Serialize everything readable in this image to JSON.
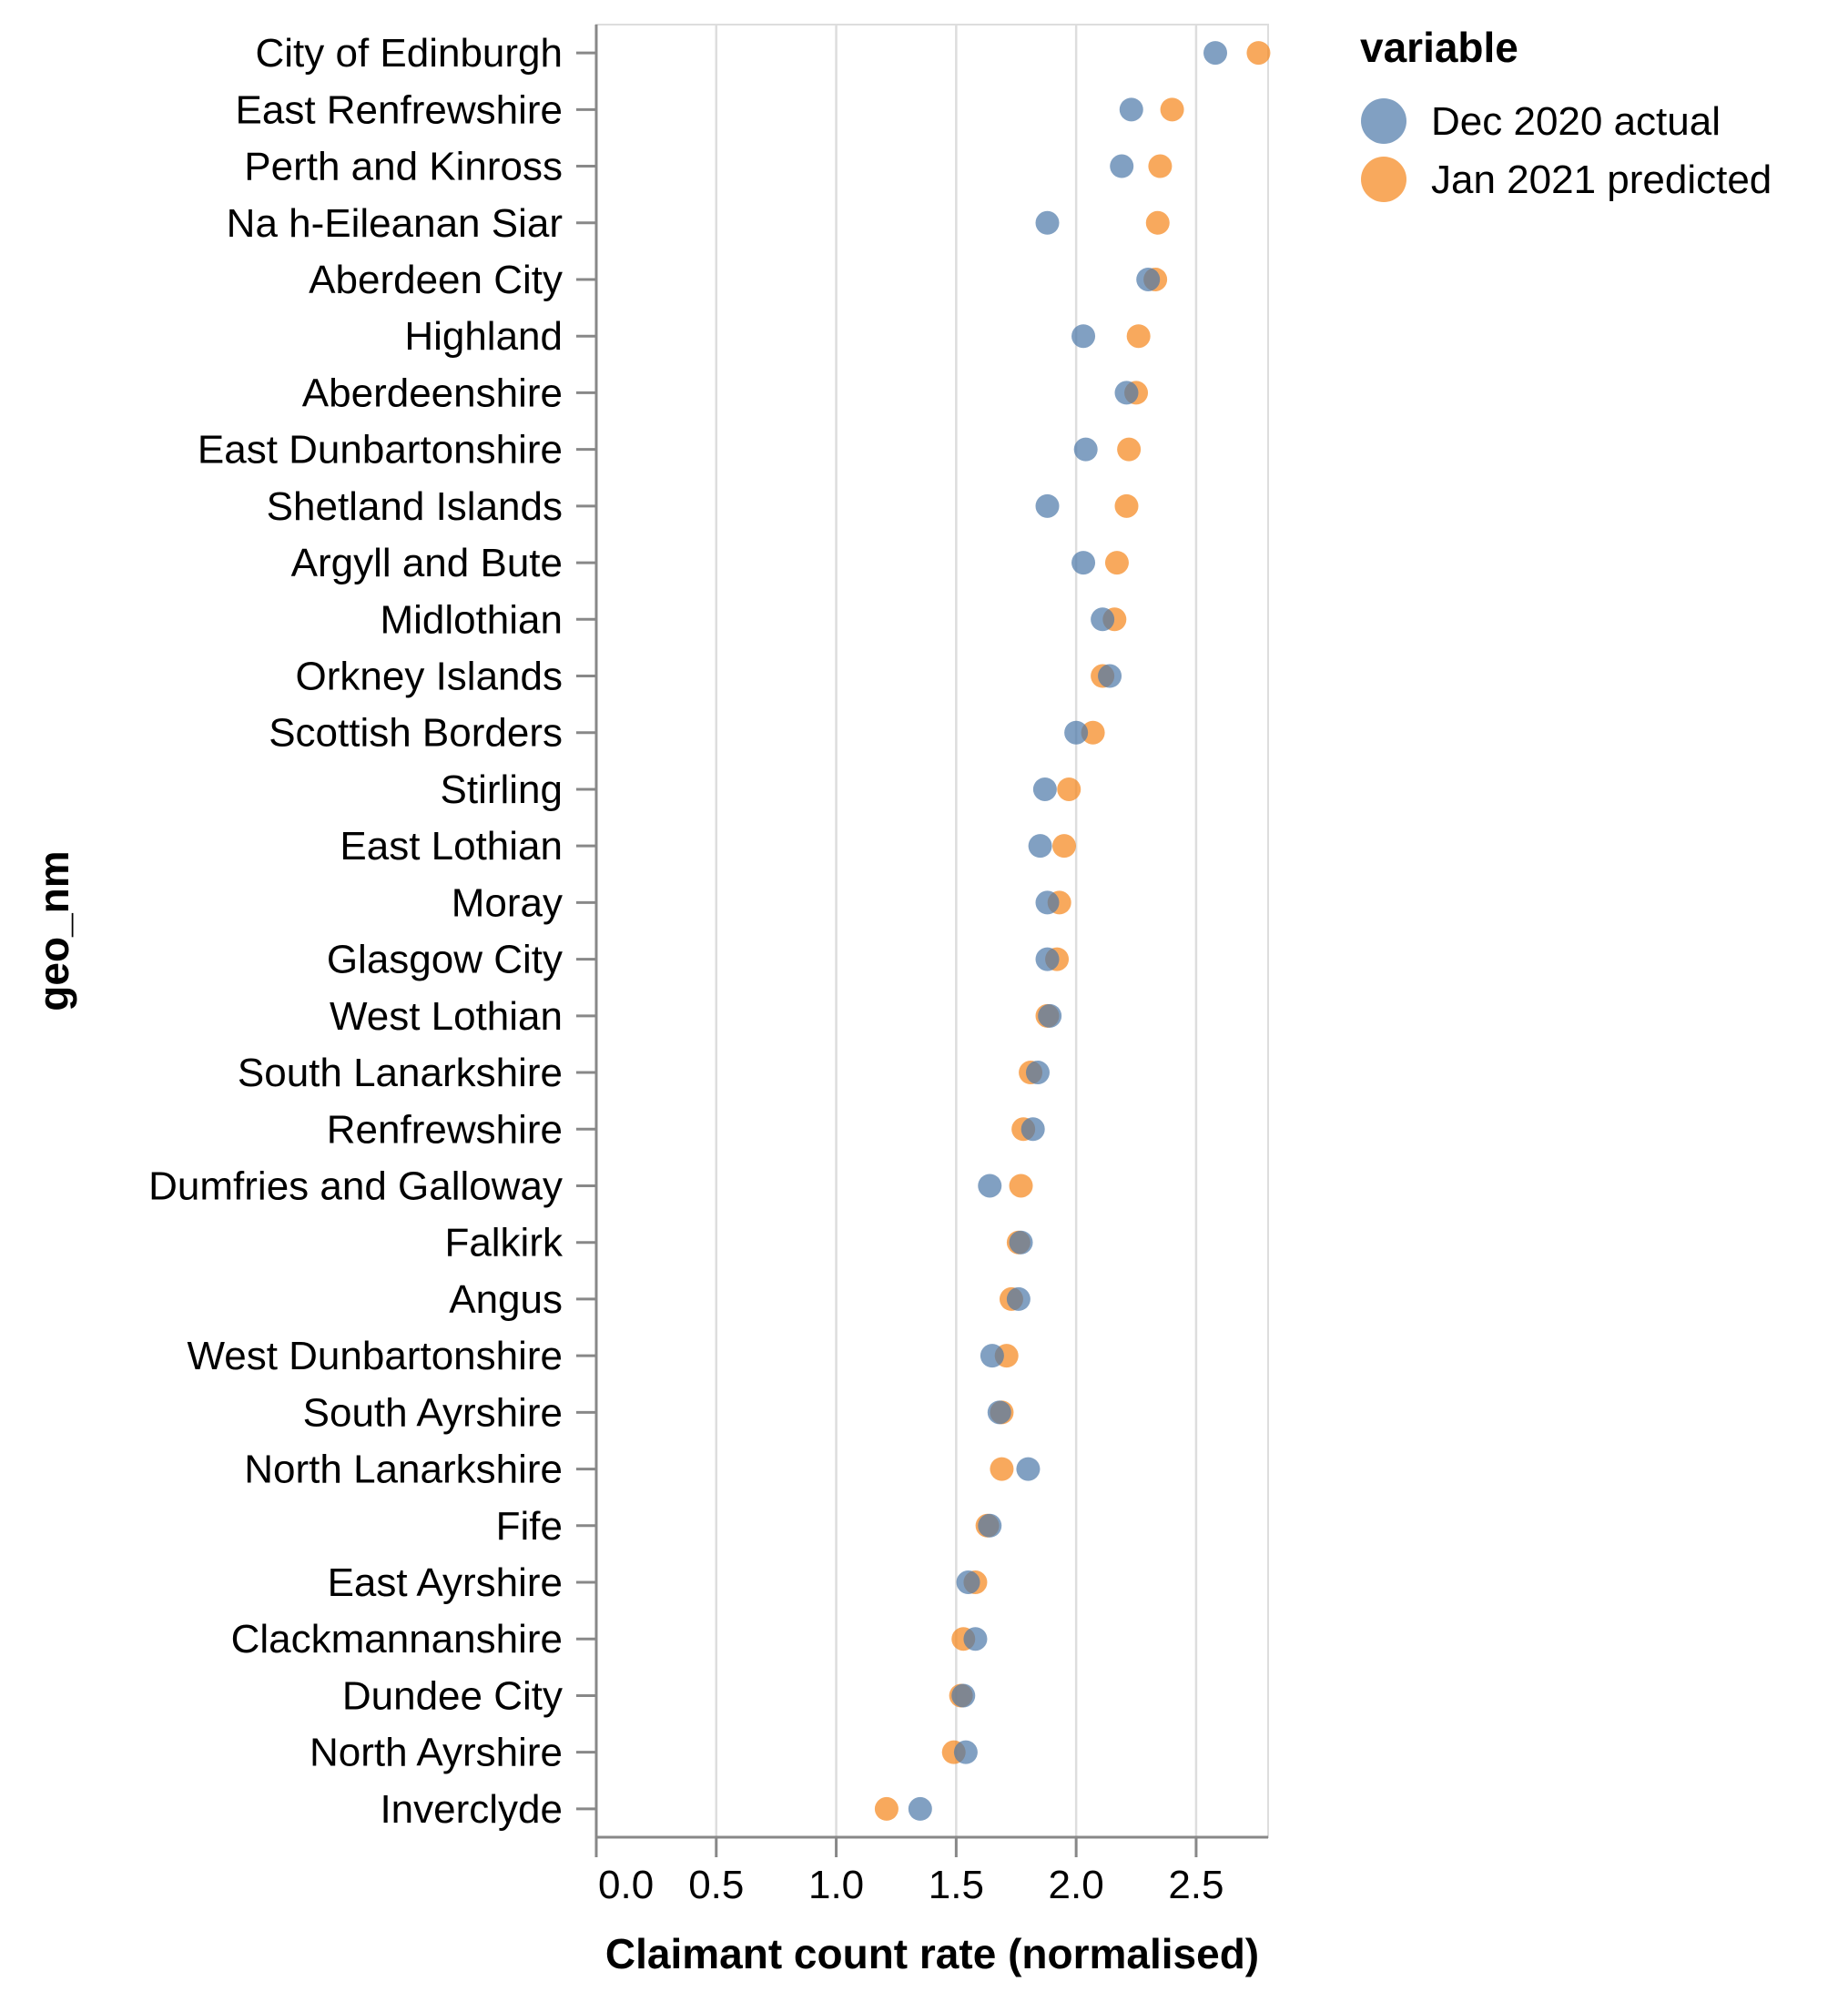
{
  "chart_data": {
    "type": "scatter",
    "title": "",
    "xlabel": "Claimant count rate (normalised)",
    "ylabel": "geo_nm",
    "xlim": [
      0,
      2.8
    ],
    "x_ticks": [
      0.0,
      0.5,
      1.0,
      1.5,
      2.0,
      2.5
    ],
    "x_tick_labels": [
      "0.0",
      "0.5",
      "1.0",
      "1.5",
      "2.0",
      "2.5"
    ],
    "grid": true,
    "legend": {
      "title": "variable",
      "position": "top-right"
    },
    "categories": [
      "City of Edinburgh",
      "East Renfrewshire",
      "Perth and Kinross",
      "Na h-Eileanan Siar",
      "Aberdeen City",
      "Highland",
      "Aberdeenshire",
      "East Dunbartonshire",
      "Shetland Islands",
      "Argyll and Bute",
      "Midlothian",
      "Orkney Islands",
      "Scottish Borders",
      "Stirling",
      "East Lothian",
      "Moray",
      "Glasgow City",
      "West Lothian",
      "South Lanarkshire",
      "Renfrewshire",
      "Dumfries and Galloway",
      "Falkirk",
      "Angus",
      "West Dunbartonshire",
      "South Ayrshire",
      "North Lanarkshire",
      "Fife",
      "East Ayrshire",
      "Clackmannanshire",
      "Dundee City",
      "North Ayrshire",
      "Inverclyde"
    ],
    "series": [
      {
        "name": "Dec 2020 actual",
        "color": "#4c78a8",
        "values": [
          2.58,
          2.23,
          2.19,
          1.88,
          2.3,
          2.03,
          2.21,
          2.04,
          1.88,
          2.03,
          2.11,
          2.14,
          2.0,
          1.87,
          1.85,
          1.88,
          1.88,
          1.89,
          1.84,
          1.82,
          1.64,
          1.77,
          1.76,
          1.65,
          1.68,
          1.8,
          1.64,
          1.55,
          1.58,
          1.53,
          1.54,
          1.35
        ]
      },
      {
        "name": "Jan 2021 predicted",
        "color": "#f58518",
        "values": [
          2.76,
          2.4,
          2.35,
          2.34,
          2.33,
          2.26,
          2.25,
          2.22,
          2.21,
          2.17,
          2.16,
          2.11,
          2.07,
          1.97,
          1.95,
          1.93,
          1.92,
          1.88,
          1.81,
          1.78,
          1.77,
          1.76,
          1.73,
          1.71,
          1.69,
          1.69,
          1.63,
          1.58,
          1.53,
          1.52,
          1.49,
          1.21
        ]
      }
    ]
  }
}
